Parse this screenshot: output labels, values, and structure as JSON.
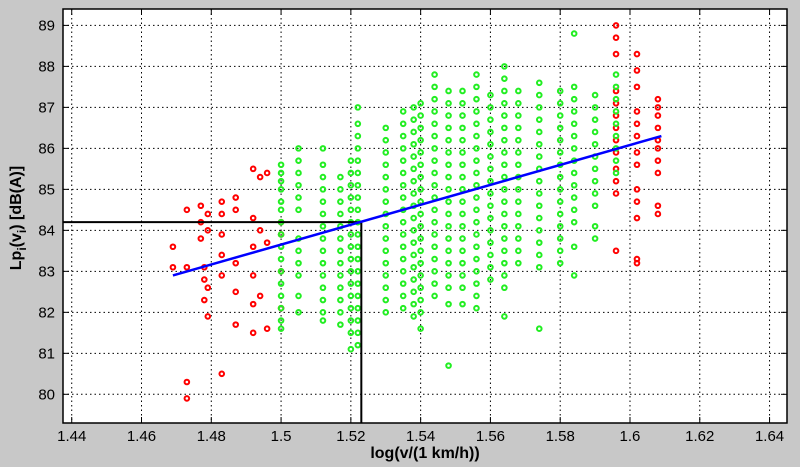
{
  "chart_data": {
    "type": "scatter",
    "title": "",
    "xlabel": "log(v/(1 km/h))",
    "ylabel": {
      "main": "Lp",
      "sub1": "i",
      "mid": "(v",
      "sub2": "i",
      "end": ") [dB(A)]"
    },
    "xlim": [
      1.4375,
      1.645
    ],
    "ylim": [
      79.3,
      89.4
    ],
    "xticks": [
      1.44,
      1.46,
      1.48,
      1.5,
      1.52,
      1.54,
      1.56,
      1.58,
      1.6,
      1.62,
      1.64
    ],
    "xtick_labels": [
      "1.44",
      "1.46",
      "1.48",
      "1.5",
      "1.52",
      "1.54",
      "1.56",
      "1.58",
      "1.6",
      "1.62",
      "1.64"
    ],
    "yticks": [
      80,
      81,
      82,
      83,
      84,
      85,
      86,
      87,
      88,
      89
    ],
    "ytick_labels": [
      "80",
      "81",
      "82",
      "83",
      "84",
      "85",
      "86",
      "87",
      "88",
      "89"
    ],
    "grid": true,
    "colors": {
      "outlier": "#ff0000",
      "inlier": "#22ee22",
      "fit": "#0000ff",
      "reference": "#000000",
      "background": "#c8c8c8",
      "plot_bg": "#ffffff"
    },
    "regression_line": {
      "x": [
        1.469,
        1.609
      ],
      "y": [
        82.9,
        86.3
      ]
    },
    "reference_point": {
      "x": 1.523,
      "y": 84.2
    },
    "series": [
      {
        "role": "outliers",
        "color": "#ff0000",
        "points": [
          [
            1.469,
            83.6
          ],
          [
            1.469,
            83.1
          ],
          [
            1.473,
            84.5
          ],
          [
            1.473,
            83.1
          ],
          [
            1.473,
            80.3
          ],
          [
            1.473,
            79.9
          ],
          [
            1.477,
            84.6
          ],
          [
            1.477,
            84.2
          ],
          [
            1.477,
            83.8
          ],
          [
            1.478,
            83.1
          ],
          [
            1.478,
            82.8
          ],
          [
            1.478,
            82.3
          ],
          [
            1.479,
            84.4
          ],
          [
            1.479,
            84.0
          ],
          [
            1.479,
            82.6
          ],
          [
            1.479,
            81.9
          ],
          [
            1.483,
            84.7
          ],
          [
            1.483,
            84.4
          ],
          [
            1.483,
            83.9
          ],
          [
            1.483,
            83.4
          ],
          [
            1.483,
            82.9
          ],
          [
            1.483,
            80.5
          ],
          [
            1.487,
            84.8
          ],
          [
            1.487,
            84.5
          ],
          [
            1.487,
            83.2
          ],
          [
            1.487,
            82.5
          ],
          [
            1.487,
            81.7
          ],
          [
            1.492,
            85.5
          ],
          [
            1.492,
            84.3
          ],
          [
            1.492,
            83.6
          ],
          [
            1.492,
            82.9
          ],
          [
            1.492,
            82.2
          ],
          [
            1.492,
            81.5
          ],
          [
            1.494,
            85.3
          ],
          [
            1.494,
            84.0
          ],
          [
            1.494,
            82.4
          ],
          [
            1.496,
            85.4
          ],
          [
            1.496,
            83.7
          ],
          [
            1.496,
            81.6
          ],
          [
            1.5,
            84.2
          ],
          [
            1.5,
            83.9
          ],
          [
            1.5,
            83.0
          ],
          [
            1.5,
            82.1
          ],
          [
            1.596,
            89.0
          ],
          [
            1.596,
            88.7
          ],
          [
            1.596,
            88.3
          ],
          [
            1.596,
            87.4
          ],
          [
            1.596,
            87.1
          ],
          [
            1.596,
            86.8
          ],
          [
            1.596,
            86.5
          ],
          [
            1.596,
            86.2
          ],
          [
            1.596,
            85.9
          ],
          [
            1.596,
            85.5
          ],
          [
            1.596,
            85.2
          ],
          [
            1.596,
            84.9
          ],
          [
            1.596,
            83.5
          ],
          [
            1.602,
            88.3
          ],
          [
            1.602,
            87.9
          ],
          [
            1.602,
            87.5
          ],
          [
            1.602,
            86.9
          ],
          [
            1.602,
            86.6
          ],
          [
            1.602,
            86.3
          ],
          [
            1.602,
            85.9
          ],
          [
            1.602,
            85.6
          ],
          [
            1.602,
            85.0
          ],
          [
            1.602,
            84.7
          ],
          [
            1.602,
            84.3
          ],
          [
            1.602,
            83.3
          ],
          [
            1.602,
            83.2
          ],
          [
            1.608,
            87.2
          ],
          [
            1.608,
            87.0
          ],
          [
            1.608,
            86.8
          ],
          [
            1.608,
            86.5
          ],
          [
            1.608,
            86.2
          ],
          [
            1.608,
            86.0
          ],
          [
            1.608,
            85.7
          ],
          [
            1.608,
            85.4
          ],
          [
            1.608,
            84.6
          ],
          [
            1.608,
            84.4
          ]
        ]
      },
      {
        "role": "data",
        "color": "#22ee22",
        "columns": [
          {
            "x": 1.5,
            "y": [
              85.6,
              85.4,
              85.2,
              85.0,
              84.7,
              84.5,
              84.2,
              83.9,
              83.6,
              83.3,
              83.0,
              82.7,
              82.4,
              82.1,
              81.8,
              81.6
            ]
          },
          {
            "x": 1.505,
            "y": [
              86.0,
              85.7,
              85.4,
              85.1,
              84.8,
              84.5,
              83.8,
              83.5,
              83.2,
              82.9,
              82.4,
              82.0
            ]
          },
          {
            "x": 1.512,
            "y": [
              86.0,
              85.6,
              85.3,
              85.0,
              84.7,
              84.4,
              84.1,
              83.8,
              83.5,
              83.2,
              82.9,
              82.6,
              82.3,
              82.0,
              81.8
            ]
          },
          {
            "x": 1.517,
            "y": [
              85.3,
              85.0,
              84.7,
              84.4,
              84.1,
              83.8,
              83.5,
              83.2,
              82.9,
              82.6,
              82.3,
              82.0,
              81.7
            ]
          },
          {
            "x": 1.52,
            "y": [
              85.7,
              85.4,
              85.1,
              84.8,
              84.5,
              84.2,
              83.9,
              83.6,
              83.3,
              83.0,
              82.7,
              82.4,
              82.1,
              81.8,
              81.5,
              81.1
            ]
          },
          {
            "x": 1.522,
            "y": [
              87.0,
              86.6,
              86.3,
              86.0,
              85.7,
              85.4,
              85.1,
              84.8,
              84.5,
              84.2,
              83.9,
              83.6,
              83.3,
              83.0,
              82.7,
              82.4,
              82.1,
              81.8,
              81.5,
              81.2
            ]
          },
          {
            "x": 1.53,
            "y": [
              86.5,
              86.2,
              85.9,
              85.6,
              85.3,
              85.0,
              84.7,
              84.4,
              84.1,
              83.8,
              83.5,
              83.2,
              82.9,
              82.6,
              82.3,
              82.0
            ]
          },
          {
            "x": 1.535,
            "y": [
              86.9,
              86.6,
              86.3,
              86.0,
              85.7,
              85.4,
              85.1,
              84.8,
              84.5,
              84.2,
              83.9,
              83.6,
              83.3,
              83.0,
              82.7,
              82.4,
              82.1
            ]
          },
          {
            "x": 1.538,
            "y": [
              87.0,
              86.7,
              86.4,
              86.1,
              85.8,
              85.5,
              85.2,
              84.9,
              84.6,
              84.3,
              84.0,
              83.7,
              83.4,
              83.1,
              82.8,
              82.5,
              82.2,
              81.9
            ]
          },
          {
            "x": 1.54,
            "y": [
              87.1,
              86.8,
              86.5,
              86.2,
              85.9,
              85.6,
              85.3,
              85.0,
              84.7,
              84.4,
              84.1,
              83.8,
              83.5,
              83.2,
              82.9,
              82.6,
              82.3,
              82.0,
              81.6
            ]
          },
          {
            "x": 1.544,
            "y": [
              87.8,
              87.5,
              87.2,
              86.9,
              86.6,
              86.3,
              86.0,
              85.7,
              85.4,
              85.1,
              84.8,
              84.5,
              84.2,
              83.9,
              83.6,
              83.3,
              83.0,
              82.7,
              82.4
            ]
          },
          {
            "x": 1.548,
            "y": [
              87.4,
              87.1,
              86.8,
              86.5,
              86.2,
              85.9,
              85.6,
              85.3,
              85.0,
              84.7,
              84.4,
              84.1,
              83.8,
              83.5,
              83.2,
              82.9,
              82.6,
              82.2,
              80.7
            ]
          },
          {
            "x": 1.552,
            "y": [
              87.4,
              87.1,
              86.8,
              86.5,
              86.2,
              85.9,
              85.6,
              85.3,
              85.0,
              84.7,
              84.4,
              84.1,
              83.8,
              83.5,
              83.2,
              82.9,
              82.6,
              82.2
            ]
          },
          {
            "x": 1.556,
            "y": [
              87.8,
              87.5,
              87.2,
              86.9,
              86.6,
              86.3,
              86.0,
              85.7,
              85.4,
              85.1,
              84.8,
              84.5,
              84.2,
              83.9,
              83.6,
              83.3,
              83.0,
              82.7,
              82.4,
              82.1
            ]
          },
          {
            "x": 1.56,
            "y": [
              87.3,
              87.0,
              86.7,
              86.4,
              86.1,
              85.8,
              85.5,
              85.2,
              84.9,
              84.6,
              84.3,
              84.0,
              83.7,
              83.4,
              83.1,
              82.8
            ]
          },
          {
            "x": 1.564,
            "y": [
              88.0,
              87.7,
              87.4,
              87.1,
              86.8,
              86.5,
              86.2,
              85.9,
              85.6,
              85.3,
              85.0,
              84.7,
              84.4,
              84.1,
              83.8,
              83.5,
              83.2,
              82.9,
              82.6,
              81.9
            ]
          },
          {
            "x": 1.568,
            "y": [
              87.4,
              87.1,
              86.8,
              86.5,
              86.2,
              85.9,
              85.6,
              85.3,
              85.0,
              84.7,
              84.4,
              84.1,
              83.8,
              83.5,
              83.2
            ]
          },
          {
            "x": 1.574,
            "y": [
              87.6,
              87.3,
              87.0,
              86.7,
              86.4,
              86.1,
              85.8,
              85.5,
              85.2,
              84.9,
              84.6,
              84.3,
              84.0,
              83.7,
              83.4,
              83.1,
              81.6
            ]
          },
          {
            "x": 1.58,
            "y": [
              87.4,
              87.1,
              86.8,
              86.5,
              86.2,
              85.9,
              85.6,
              85.3,
              85.0,
              84.7,
              84.4,
              84.1,
              83.8,
              83.5,
              83.2
            ]
          },
          {
            "x": 1.584,
            "y": [
              88.8,
              87.5,
              87.2,
              86.9,
              86.6,
              86.3,
              86.0,
              85.7,
              85.4,
              85.1,
              84.8,
              84.5,
              84.2,
              83.6,
              82.9
            ]
          },
          {
            "x": 1.59,
            "y": [
              87.3,
              87.0,
              86.7,
              86.4,
              86.1,
              85.8,
              85.5,
              85.2,
              84.9,
              84.6,
              84.1,
              83.8
            ]
          },
          {
            "x": 1.596,
            "y": [
              87.8,
              87.5,
              87.2,
              86.9,
              86.6,
              86.3,
              86.0,
              85.7,
              85.4
            ]
          }
        ]
      }
    ]
  }
}
